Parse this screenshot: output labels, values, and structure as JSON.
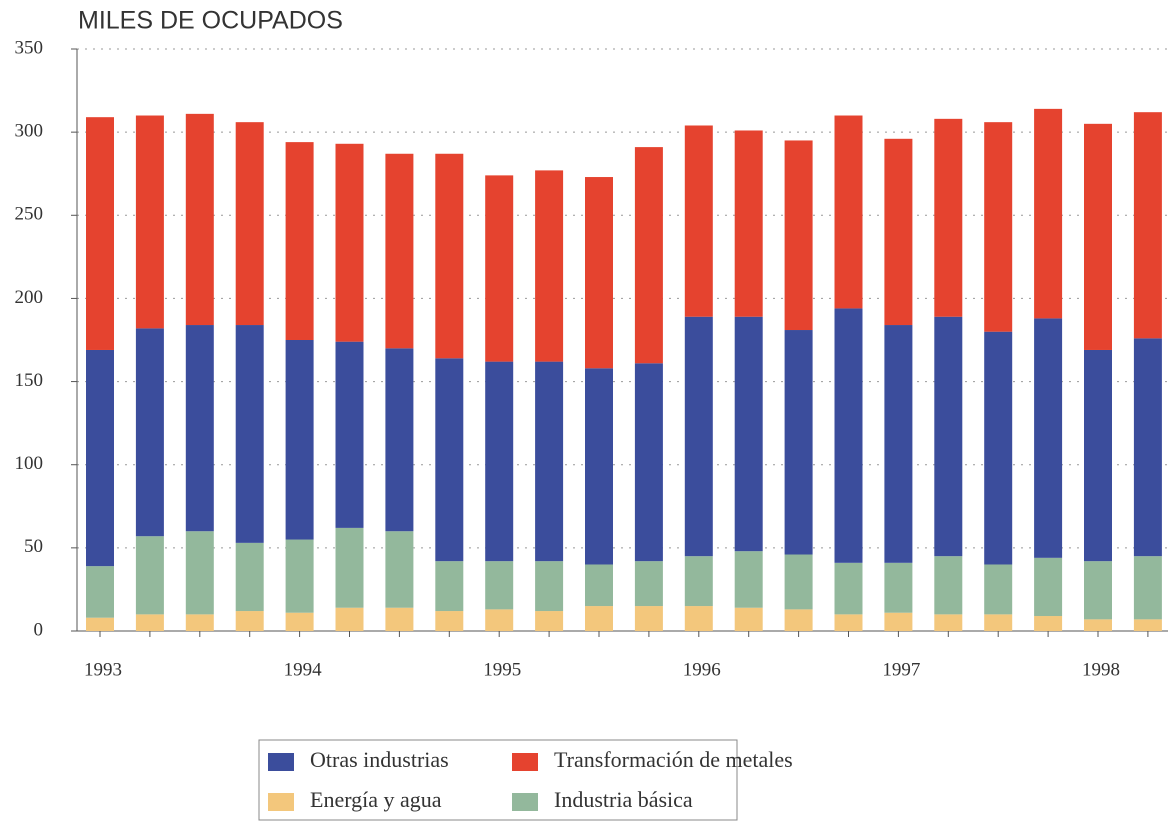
{
  "chart_data": {
    "type": "stacked_bar",
    "title": "MILES DE OCUPADOS",
    "categories": [
      "1993",
      null,
      null,
      null,
      "1994",
      null,
      null,
      null,
      "1995",
      null,
      null,
      null,
      "1996",
      null,
      null,
      null,
      "1997",
      null,
      null,
      null,
      "1998",
      null
    ],
    "series": [
      {
        "name": "Energía y agua",
        "color": "#f3c77c",
        "values": [
          8,
          10,
          10,
          12,
          11,
          14,
          14,
          12,
          13,
          12,
          15,
          15,
          15,
          14,
          13,
          10,
          11,
          10,
          10,
          9,
          7,
          7
        ]
      },
      {
        "name": "Industria básica",
        "color": "#93b89c",
        "values": [
          31,
          47,
          50,
          41,
          44,
          48,
          46,
          30,
          29,
          30,
          25,
          27,
          30,
          34,
          33,
          31,
          30,
          35,
          30,
          35,
          35,
          38
        ]
      },
      {
        "name": "Otras industrias",
        "color": "#3b4d9c",
        "values": [
          130,
          125,
          124,
          131,
          120,
          112,
          110,
          122,
          120,
          120,
          118,
          119,
          144,
          141,
          135,
          153,
          143,
          144,
          140,
          144,
          127,
          131
        ]
      },
      {
        "name": "Transformación de metales",
        "color": "#e5432f",
        "values": [
          140,
          128,
          127,
          122,
          119,
          119,
          117,
          123,
          112,
          115,
          115,
          130,
          115,
          112,
          114,
          116,
          112,
          119,
          126,
          126,
          136,
          136
        ]
      }
    ],
    "ylim": [
      0,
      350
    ],
    "yticks": [
      0,
      50,
      100,
      150,
      200,
      250,
      300,
      350
    ],
    "grid": true
  }
}
